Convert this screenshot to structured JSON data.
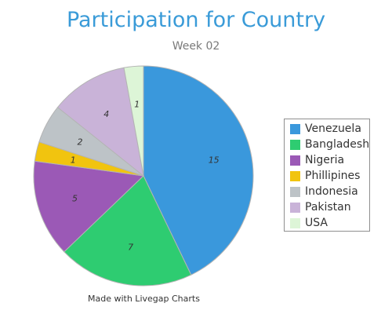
{
  "chart_data": {
    "type": "pie",
    "title": "Participation for Country",
    "subtitle": "Week 02",
    "categories": [
      "Venezuela",
      "Bangladesh",
      "Nigeria",
      "Phillipines",
      "Indonesia",
      "Pakistan",
      "USA"
    ],
    "values": [
      15,
      7,
      5,
      1,
      2,
      4,
      1
    ],
    "colors": [
      "#3a98dc",
      "#2ecc71",
      "#9b59b6",
      "#f1c40f",
      "#bdc3c7",
      "#c9b3d8",
      "#ddf5d7"
    ],
    "legend_position": "right",
    "start_angle": "top, clockwise"
  },
  "footer": {
    "credit": "Made with Livegap Charts"
  }
}
